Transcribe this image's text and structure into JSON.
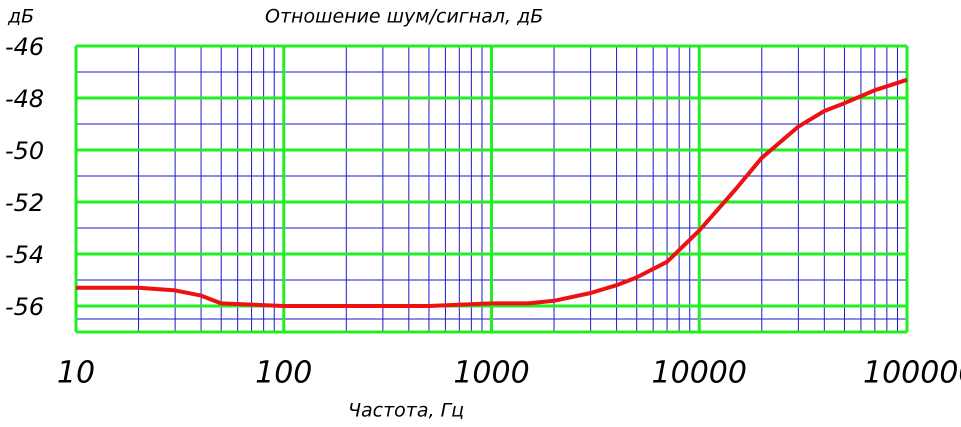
{
  "chart_data": {
    "type": "line",
    "title": "Отношение шум/сигнал, дБ",
    "y_label": "дБ",
    "x_label": "Частота, Гц",
    "x": [
      10,
      20,
      30,
      40,
      50,
      100,
      500,
      1000,
      1500,
      2000,
      3000,
      4000,
      5000,
      7000,
      10000,
      15000,
      20000,
      30000,
      40000,
      50000,
      70000,
      100000
    ],
    "series": [
      {
        "color": "#ee1111",
        "values": [
          -55.3,
          -55.3,
          -55.4,
          -55.6,
          -55.9,
          -56,
          -56,
          -55.9,
          -55.9,
          -55.8,
          -55.5,
          -55.2,
          -54.9,
          -54.3,
          -53.1,
          -51.5,
          -50.3,
          -49.1,
          -48.5,
          -48.2,
          -47.7,
          -47.3
        ]
      }
    ],
    "x_log": true,
    "xlim": [
      10,
      100000
    ],
    "xticks": [
      10,
      100,
      1000,
      10000,
      100000
    ],
    "ylim": [
      -57,
      -46
    ],
    "yticks": [
      -46,
      -48,
      -50,
      -52,
      -54,
      -56
    ],
    "grid": true,
    "grid_color": "#22ee22",
    "minor_grid_color": "#1a1acc"
  }
}
